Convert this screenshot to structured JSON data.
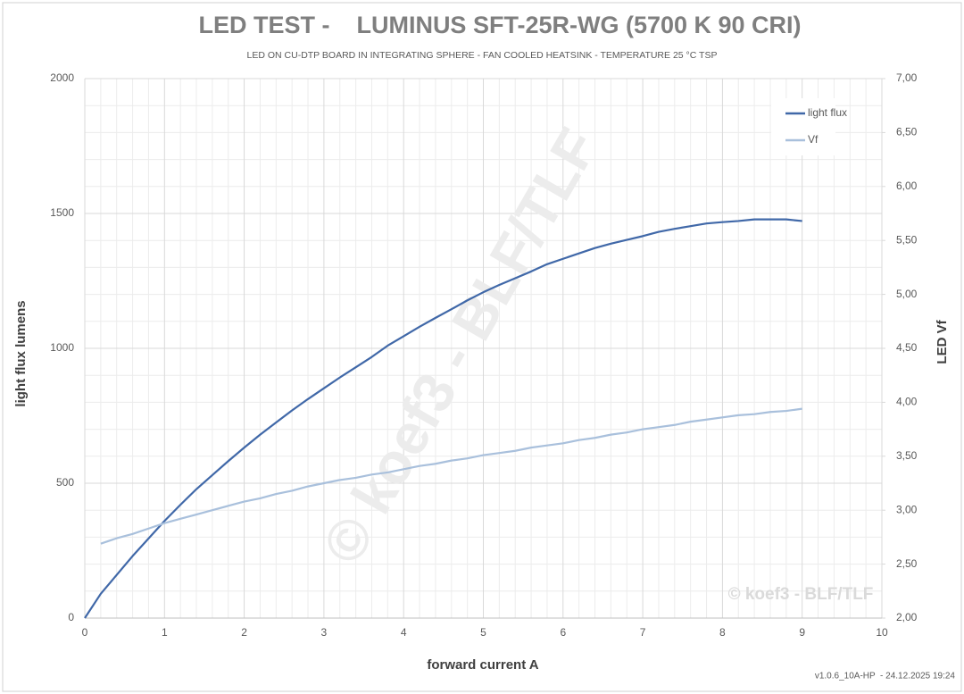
{
  "chart_data": {
    "type": "line",
    "title": "LED TEST -    LUMINUS SFT-25R-WG (5700 K 90 CRI)",
    "subtitle": "LED ON CU-DTP BOARD IN INTEGRATING SPHERE - FAN COOLED HEATSINK - TEMPERATURE 25 °C TSP",
    "x_label": "forward current A",
    "y_label": "light flux lumens",
    "y2_label": "LED Vf",
    "watermark": "© koef3 - BLF/TLF",
    "footer": "v1.0.6_10A-HP  - 24.12.2025 19:24",
    "x": [
      0,
      0.2,
      0.4,
      0.6,
      0.8,
      1,
      1.2,
      1.4,
      1.6,
      1.8,
      2,
      2.2,
      2.4,
      2.6,
      2.8,
      3,
      3.2,
      3.4,
      3.6,
      3.8,
      4,
      4.2,
      4.4,
      4.6,
      4.8,
      5,
      5.2,
      5.4,
      5.6,
      5.8,
      6,
      6.2,
      6.4,
      6.6,
      6.8,
      7,
      7.2,
      7.4,
      7.6,
      7.8,
      8,
      8.2,
      8.4,
      8.6,
      8.8,
      9
    ],
    "series": [
      {
        "name": "light flux",
        "color": "#4068a8",
        "axis": "y",
        "values": [
          0,
          90,
          160,
          230,
          295,
          360,
          420,
          478,
          530,
          582,
          632,
          680,
          725,
          770,
          812,
          852,
          892,
          930,
          968,
          1010,
          1045,
          1080,
          1113,
          1145,
          1178,
          1208,
          1235,
          1260,
          1285,
          1312,
          1332,
          1352,
          1372,
          1388,
          1402,
          1416,
          1432,
          1443,
          1453,
          1463,
          1468,
          1472,
          1478,
          1478,
          1478,
          1472
        ]
      },
      {
        "name": "Vf",
        "color": "#a9c0dc",
        "axis": "y2",
        "values": [
          null,
          2.69,
          2.74,
          2.78,
          2.83,
          2.88,
          2.92,
          2.96,
          3.0,
          3.04,
          3.08,
          3.11,
          3.15,
          3.18,
          3.22,
          3.25,
          3.28,
          3.3,
          3.33,
          3.35,
          3.38,
          3.41,
          3.43,
          3.46,
          3.48,
          3.51,
          3.53,
          3.55,
          3.58,
          3.6,
          3.62,
          3.65,
          3.67,
          3.7,
          3.72,
          3.75,
          3.77,
          3.79,
          3.82,
          3.84,
          3.86,
          3.88,
          3.89,
          3.91,
          3.92,
          3.94
        ]
      }
    ],
    "xlim": [
      0,
      10
    ],
    "xticks": [
      0,
      1,
      2,
      3,
      4,
      5,
      6,
      7,
      8,
      9,
      10
    ],
    "ylim": [
      0,
      2000
    ],
    "yticks": [
      0,
      500,
      1000,
      1500,
      2000
    ],
    "y2lim": [
      2,
      7
    ],
    "y2ticks": [
      {
        "value": 2,
        "label": "2,00"
      },
      {
        "value": 2.5,
        "label": "2,50"
      },
      {
        "value": 3,
        "label": "3,00"
      },
      {
        "value": 3.5,
        "label": "3,50"
      },
      {
        "value": 4,
        "label": "4,00"
      },
      {
        "value": 4.5,
        "label": "4,50"
      },
      {
        "value": 5,
        "label": "5,00"
      },
      {
        "value": 5.5,
        "label": "5,50"
      },
      {
        "value": 6,
        "label": "6,00"
      },
      {
        "value": 6.5,
        "label": "6,50"
      },
      {
        "value": 7,
        "label": "7,00"
      }
    ],
    "grid": true,
    "minor_grid": true,
    "legend": "top-right"
  }
}
